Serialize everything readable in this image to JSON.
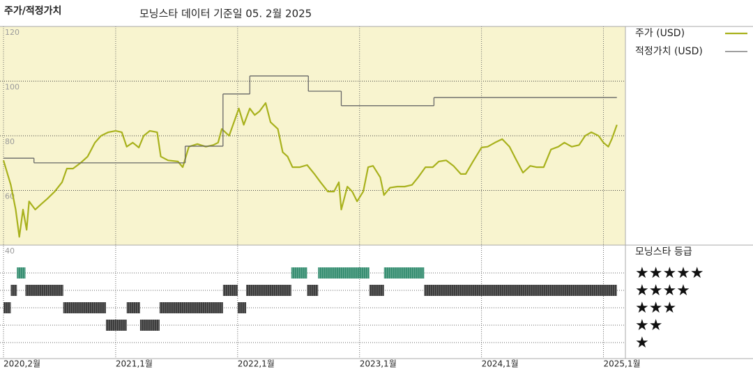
{
  "chart_data": {
    "type": "line",
    "title": "주가/적정가치",
    "subtitle": "모닝스타 데이터 기준일 05. 2월 2025",
    "xlim": [
      2020.08,
      2025.18
    ],
    "xticks": [
      {
        "value": 2020.08,
        "label": "2020,2월"
      },
      {
        "value": 2021.0,
        "label": "2021,1월"
      },
      {
        "value": 2022.0,
        "label": "2022,1월"
      },
      {
        "value": 2023.0,
        "label": "2023,1월"
      },
      {
        "value": 2024.0,
        "label": "2024,1월"
      },
      {
        "value": 2025.0,
        "label": "2025,1월"
      }
    ],
    "ylim": [
      40,
      120
    ],
    "yticks": [
      40,
      60,
      80,
      100,
      120
    ],
    "grid": true,
    "series": [
      {
        "name": "주가 (USD)",
        "color": "#a8b11c",
        "x": [
          2020.08,
          2020.14,
          2020.18,
          2020.21,
          2020.24,
          2020.27,
          2020.29,
          2020.34,
          2020.39,
          2020.44,
          2020.5,
          2020.56,
          2020.6,
          2020.65,
          2020.71,
          2020.77,
          2020.83,
          2020.88,
          2020.94,
          2021.0,
          2021.05,
          2021.09,
          2021.14,
          2021.19,
          2021.23,
          2021.28,
          2021.34,
          2021.37,
          2021.43,
          2021.51,
          2021.55,
          2021.6,
          2021.67,
          2021.74,
          2021.8,
          2021.84,
          2021.87,
          2021.93,
          2021.97,
          2022.01,
          2022.05,
          2022.1,
          2022.14,
          2022.18,
          2022.23,
          2022.27,
          2022.33,
          2022.37,
          2022.41,
          2022.45,
          2022.51,
          2022.57,
          2022.63,
          2022.68,
          2022.74,
          2022.79,
          2022.83,
          2022.85,
          2022.9,
          2022.94,
          2022.98,
          2023.03,
          2023.07,
          2023.11,
          2023.17,
          2023.2,
          2023.25,
          2023.31,
          2023.37,
          2023.43,
          2023.48,
          2023.54,
          2023.6,
          2023.65,
          2023.71,
          2023.77,
          2023.83,
          2023.87,
          2023.93,
          2024.0,
          2024.05,
          2024.11,
          2024.17,
          2024.23,
          2024.28,
          2024.34,
          2024.4,
          2024.45,
          2024.51,
          2024.57,
          2024.63,
          2024.68,
          2024.74,
          2024.8,
          2024.85,
          2024.9,
          2024.96,
          2025.0,
          2025.04,
          2025.07,
          2025.11
        ],
        "values": [
          71,
          62,
          53,
          43,
          53,
          45.6,
          56,
          53,
          55,
          57,
          59.6,
          63,
          68,
          68,
          70,
          72.4,
          77.5,
          80,
          81.3,
          81.8,
          81.3,
          76,
          77.5,
          75.7,
          80,
          81.8,
          81.3,
          72.4,
          71,
          70.6,
          68.5,
          76,
          77,
          76,
          76.6,
          77.5,
          82.5,
          80,
          85,
          90,
          84,
          90,
          87.6,
          89,
          92,
          85,
          82.5,
          74,
          72.4,
          68.5,
          68.5,
          69.3,
          66,
          63,
          59.6,
          59.6,
          63,
          53,
          61.4,
          59.6,
          56,
          59.6,
          68.5,
          69,
          64.8,
          58.3,
          61,
          61.4,
          61.4,
          62,
          64.8,
          68.5,
          68.5,
          70.6,
          71,
          69,
          66,
          66,
          70.6,
          75.7,
          76,
          77.5,
          78.8,
          76,
          71.6,
          66.5,
          69,
          68.5,
          68.5,
          75,
          76,
          77.5,
          76,
          76.6,
          80,
          81.3,
          80,
          77.5,
          76,
          79,
          84
        ]
      },
      {
        "name": "적정가치 (USD)",
        "color": "#666666",
        "step": true,
        "x": [
          2020.08,
          2020.33,
          2021.57,
          2021.88,
          2022.1,
          2022.58,
          2022.85,
          2023.61
        ],
        "x_end": [
          2020.33,
          2021.57,
          2021.88,
          2022.1,
          2022.58,
          2022.85,
          2023.61,
          2025.11
        ],
        "values": [
          71.8,
          70.1,
          76.2,
          95.3,
          101.9,
          96.3,
          91,
          94
        ]
      }
    ],
    "rating_title": "모닝스타 등급",
    "rating_levels": [
      {
        "stars": 5,
        "label": "★★★★★",
        "color": "#2f8a6c"
      },
      {
        "stars": 4,
        "label": "★★★★",
        "color": "#333333"
      },
      {
        "stars": 3,
        "label": "★★★",
        "color": "#333333"
      },
      {
        "stars": 2,
        "label": "★★",
        "color": "#333333"
      },
      {
        "stars": 1,
        "label": "★",
        "color": "#333333"
      }
    ],
    "ratings": {
      "start": [
        2020.08,
        2020.14,
        2020.19,
        2020.26,
        2020.57,
        2020.92,
        2021.09,
        2021.2,
        2021.36,
        2021.88,
        2022.0,
        2022.07,
        2022.44,
        2022.57,
        2022.66,
        2023.08,
        2023.2,
        2023.53
      ],
      "end": [
        2020.14,
        2020.19,
        2020.26,
        2020.57,
        2020.92,
        2021.09,
        2021.2,
        2021.36,
        2021.88,
        2022.0,
        2022.07,
        2022.44,
        2022.57,
        2022.66,
        2023.08,
        2023.2,
        2023.53,
        2025.11
      ],
      "stars": [
        3,
        4,
        5,
        4,
        3,
        2,
        3,
        2,
        3,
        4,
        3,
        4,
        5,
        4,
        5,
        4,
        5,
        4
      ]
    }
  }
}
